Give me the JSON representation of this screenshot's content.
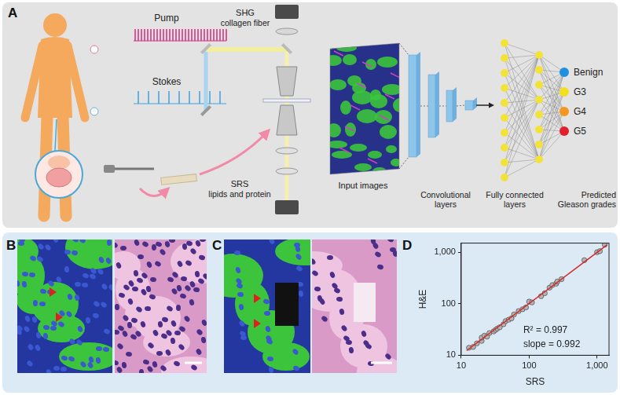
{
  "panel_labels": [
    "A",
    "B",
    "C",
    "D"
  ],
  "diagram": {
    "pump": "Pump",
    "stokes": "Stokes",
    "shg": [
      "SHG",
      "collagen fiber"
    ],
    "srs": [
      "SRS",
      "lipids and protein"
    ],
    "input": "Input images",
    "conv": [
      "Convolutional",
      "layers"
    ],
    "fc": [
      "Fully connected",
      "layers"
    ],
    "output": [
      "Predicted",
      "Gleason grades"
    ],
    "classes": [
      {
        "label": "Benign",
        "color": "#1f8fe0"
      },
      {
        "label": "G3",
        "color": "#f2df1f"
      },
      {
        "label": "G4",
        "color": "#f5961f"
      },
      {
        "label": "G5",
        "color": "#e0202a"
      }
    ]
  },
  "chart_data": {
    "type": "scatter",
    "x_label": "SRS",
    "y_label": "H&E",
    "log": true,
    "grid": false,
    "xlim": [
      10,
      1500
    ],
    "ylim": [
      10,
      1500
    ],
    "xticks": [
      10,
      100,
      {
        "value": 1000,
        "label": "1,000"
      }
    ],
    "yticks": [
      10,
      100,
      {
        "value": 1000,
        "label": "1,000"
      }
    ],
    "annotations": [
      "R² = 0.997",
      "slope = 0.992"
    ],
    "series": [
      {
        "type": "scatter",
        "marker": "circle",
        "color": "#b5b5b5",
        "x": [
          13,
          15,
          17,
          20,
          20,
          22,
          24,
          26,
          30,
          32,
          34,
          37,
          42,
          45,
          50,
          55,
          60,
          70,
          80,
          90,
          100,
          110,
          150,
          170,
          200,
          220,
          250,
          260,
          300,
          650,
          1000,
          1100,
          1300
        ],
        "values": [
          14,
          14.5,
          17,
          19,
          22,
          24,
          23,
          27,
          29,
          31,
          33,
          35,
          40,
          46,
          49,
          52,
          62,
          72,
          78,
          85,
          110,
          106,
          140,
          160,
          205,
          230,
          245,
          270,
          300,
          700,
          1000,
          1050,
          1400
        ]
      },
      {
        "type": "line",
        "line_style": "solid",
        "color": "#d62728",
        "x": [
          12,
          1400
        ],
        "values": [
          12.3,
          1387
        ]
      }
    ]
  }
}
